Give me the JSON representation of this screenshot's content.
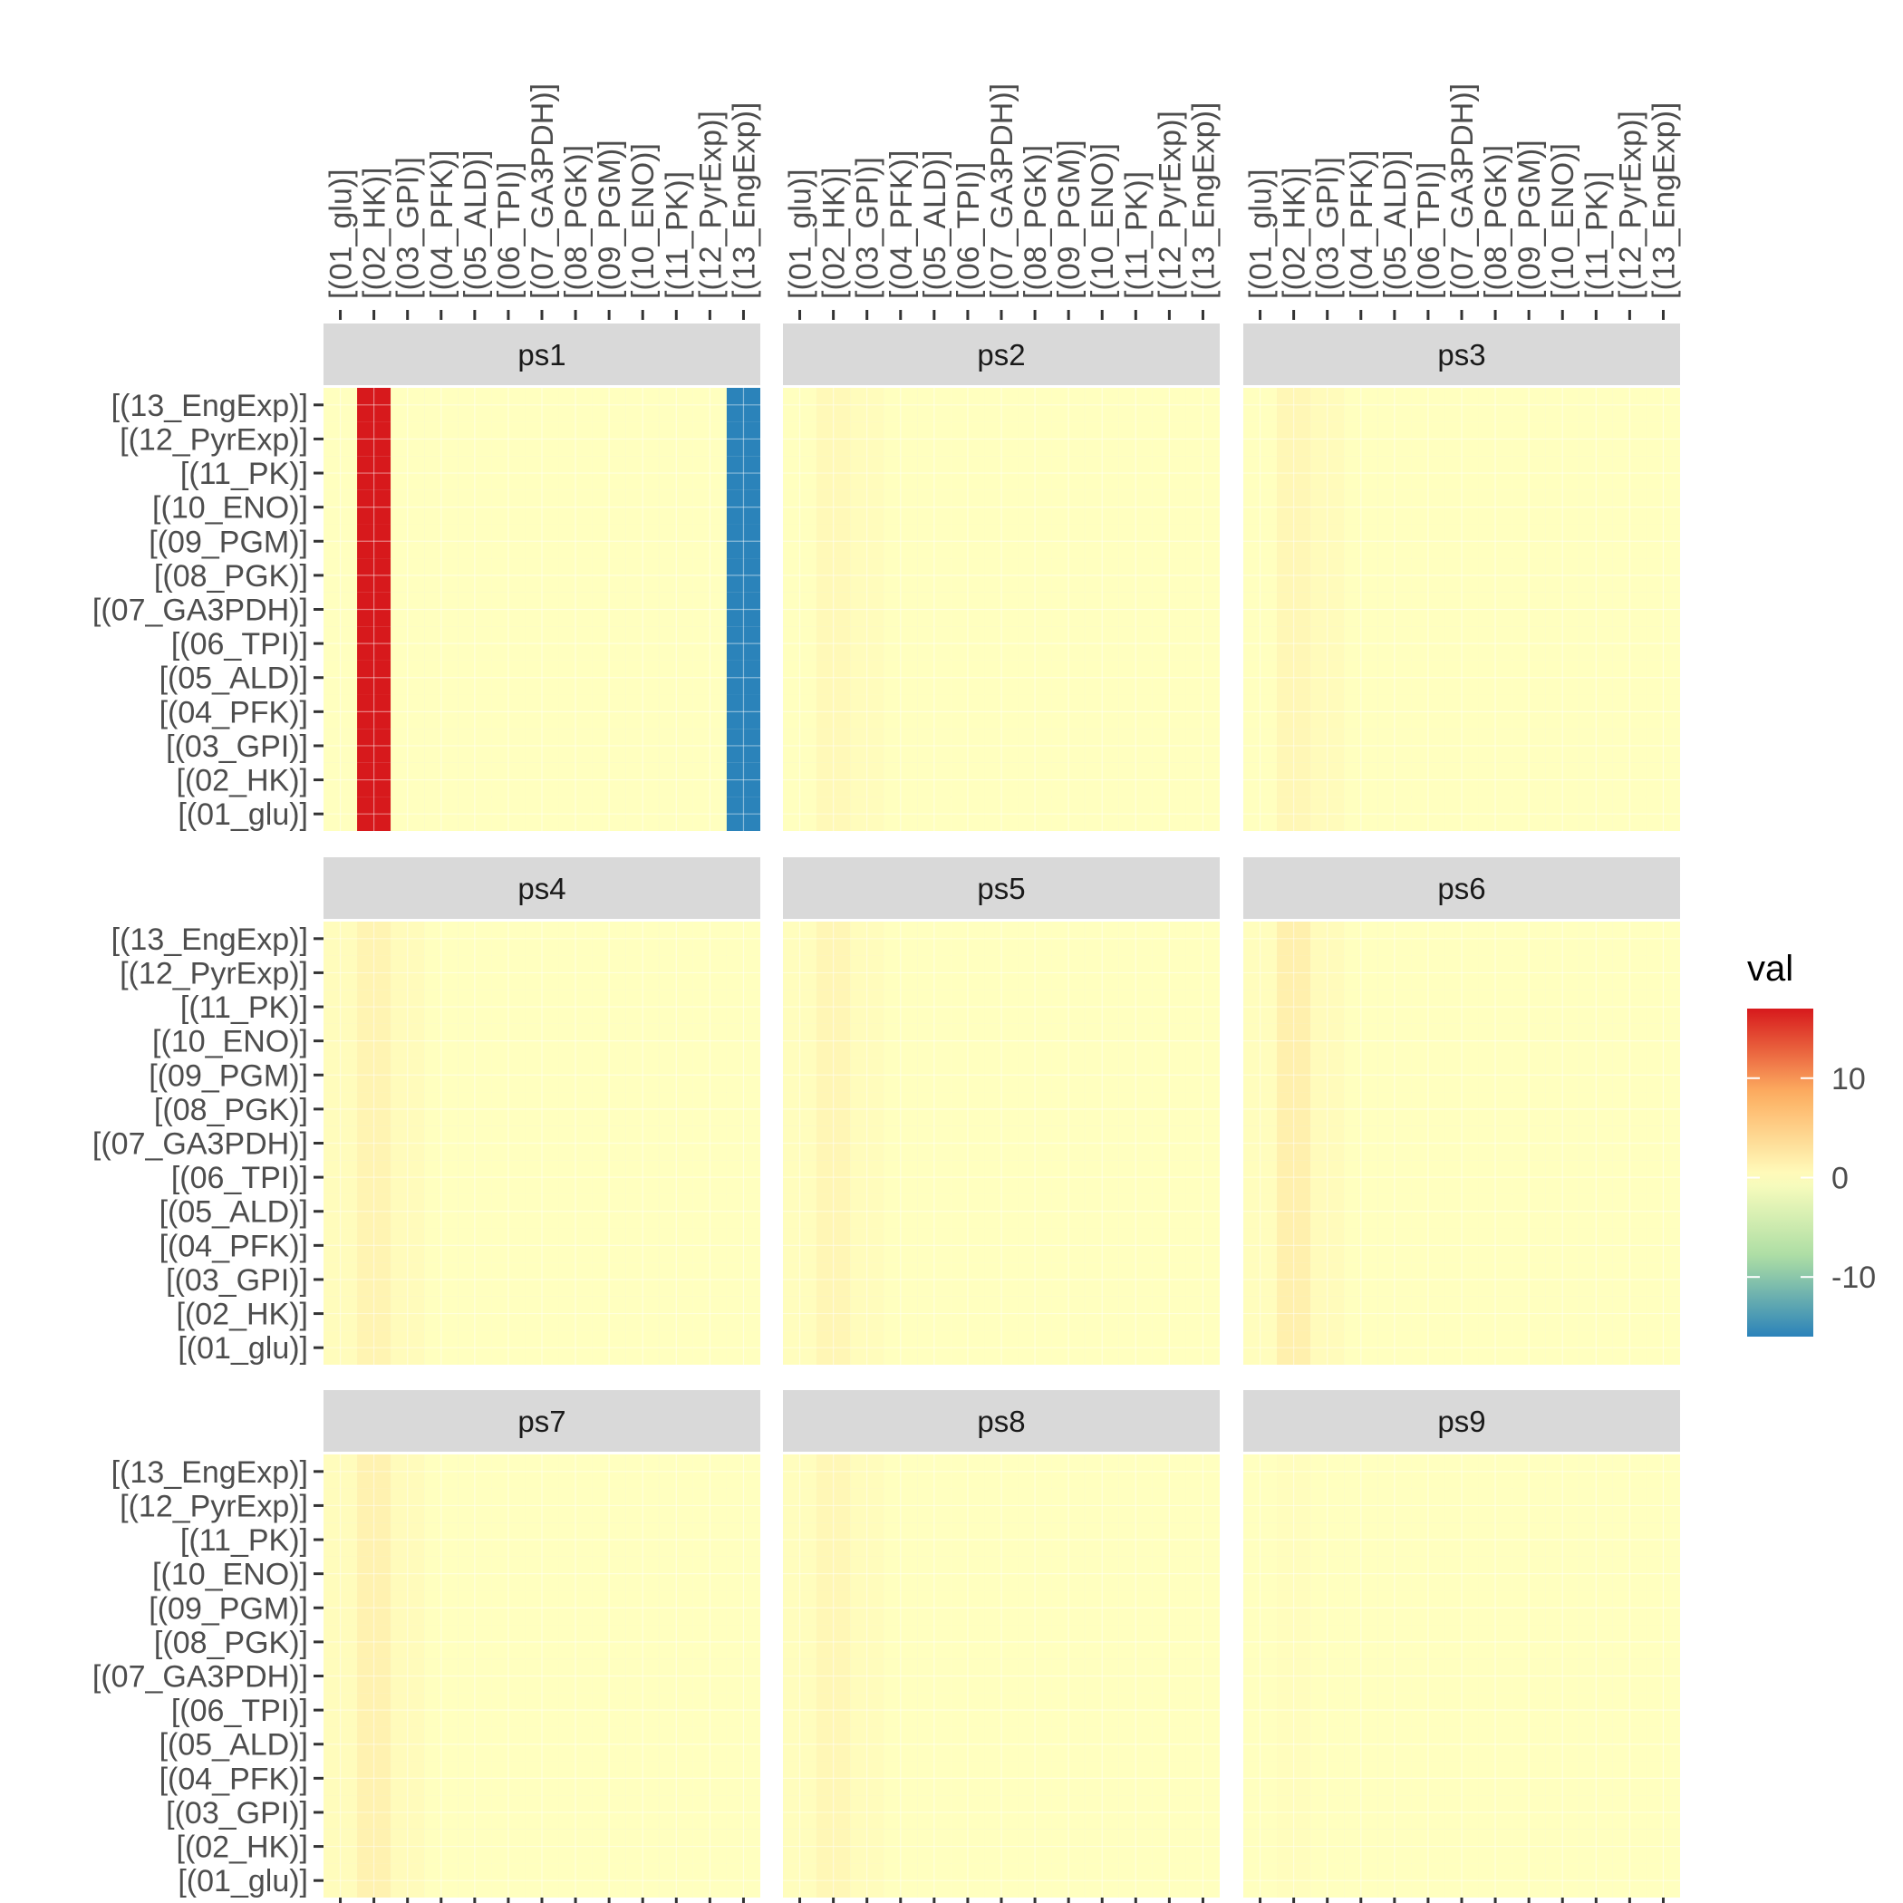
{
  "chart_data": {
    "type": "heatmap",
    "title": "",
    "xlabel": "",
    "ylabel": "",
    "x_categories": [
      "[(01_glu)]",
      "[(02_HK)]",
      "[(03_GPI)]",
      "[(04_PFK)]",
      "[(05_ALD)]",
      "[(06_TPI)]",
      "[(07_GA3PDH)]",
      "[(08_PGK)]",
      "[(09_PGM)]",
      "[(10_ENO)]",
      "[(11_PK)]",
      "[(12_PyrExp)]",
      "[(13_EngExp)]"
    ],
    "y_categories": [
      "[(01_glu)]",
      "[(02_HK)]",
      "[(03_GPI)]",
      "[(04_PFK)]",
      "[(05_ALD)]",
      "[(06_TPI)]",
      "[(07_GA3PDH)]",
      "[(08_PGK)]",
      "[(09_PGM)]",
      "[(10_ENO)]",
      "[(11_PK)]",
      "[(12_PyrExp)]",
      "[(13_EngExp)]"
    ],
    "panels": [
      {
        "name": "ps1",
        "column_values": [
          0,
          17,
          0,
          0,
          0,
          0,
          0,
          0,
          0,
          0,
          0,
          0,
          -17
        ]
      },
      {
        "name": "ps2",
        "column_values": [
          0,
          0.6,
          0.3,
          0,
          0,
          0,
          0,
          0,
          0,
          0,
          0,
          0,
          0
        ]
      },
      {
        "name": "ps3",
        "column_values": [
          0,
          0.8,
          0.4,
          0,
          0,
          0,
          0,
          0,
          0,
          0,
          0,
          0,
          0
        ]
      },
      {
        "name": "ps4",
        "column_values": [
          0.3,
          1.2,
          0.4,
          0,
          0,
          0,
          0,
          0,
          0,
          0,
          0,
          0,
          0
        ]
      },
      {
        "name": "ps5",
        "column_values": [
          0.2,
          0.9,
          0.3,
          0,
          0,
          0,
          0,
          0,
          0,
          0,
          0,
          0,
          0
        ]
      },
      {
        "name": "ps6",
        "column_values": [
          0.2,
          1.6,
          0.4,
          0,
          0,
          0,
          0,
          0,
          0,
          0,
          0,
          0,
          0
        ]
      },
      {
        "name": "ps7",
        "column_values": [
          0.3,
          1.4,
          0.4,
          0,
          0,
          0,
          0,
          0,
          0,
          0,
          0,
          0,
          0
        ]
      },
      {
        "name": "ps8",
        "column_values": [
          0.2,
          0.8,
          0.3,
          0,
          0,
          0,
          0,
          0,
          0,
          0,
          0,
          0,
          0
        ]
      },
      {
        "name": "ps9",
        "column_values": [
          0,
          0.2,
          0,
          0,
          0,
          0,
          0,
          0,
          0,
          0,
          0,
          0,
          0
        ]
      }
    ],
    "color_scale": {
      "name": "val",
      "limits": [
        -16,
        17
      ],
      "breaks": [
        10,
        0,
        -10
      ],
      "break_labels": [
        "10",
        "0",
        "-10"
      ],
      "palette": [
        "#2b83ba",
        "#abdda4",
        "#ffffbf",
        "#fdae61",
        "#d7191c"
      ]
    },
    "legend_position": "right",
    "grid": true
  }
}
